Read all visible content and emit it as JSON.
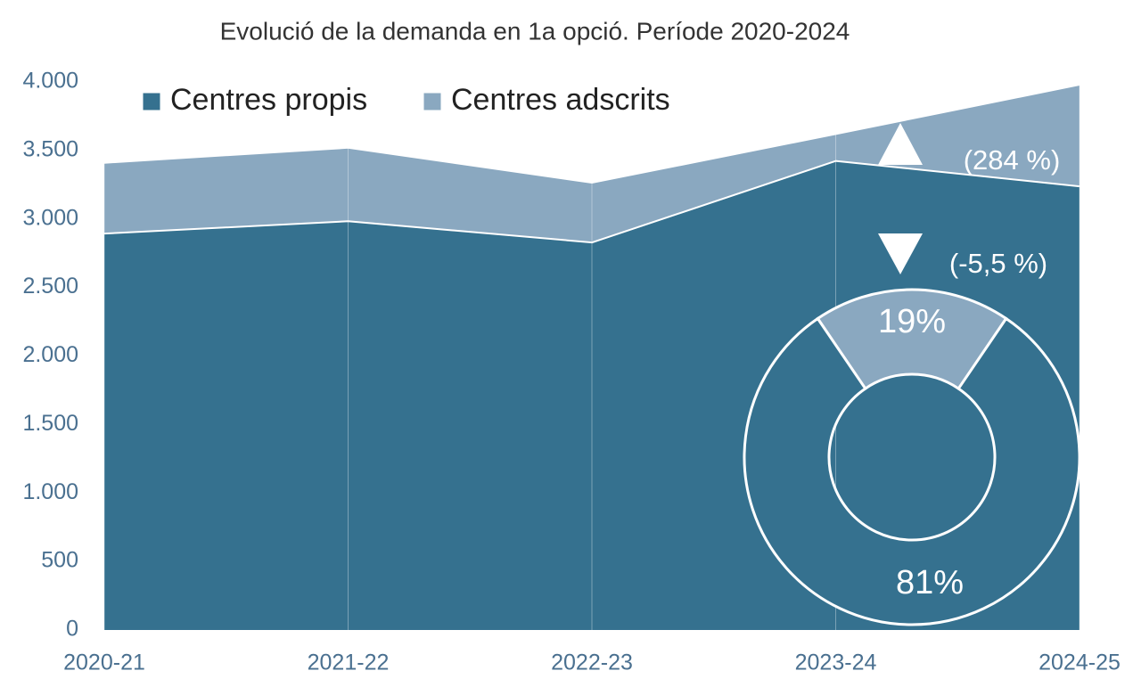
{
  "chart_data": [
    {
      "type": "area",
      "title": "Evolució de la demanda en 1a opció. Període 2020-2024",
      "categories": [
        "2020-21",
        "2021-22",
        "2022-23",
        "2023-24",
        "2024-25"
      ],
      "series": [
        {
          "name": "Centres propis",
          "color": "#35718f",
          "values": [
            2900,
            2990,
            2835,
            3430,
            3245
          ]
        },
        {
          "name": "Centres adscrits",
          "color": "#8aa8c0",
          "values": [
            510,
            530,
            430,
            190,
            735
          ]
        }
      ],
      "stacked": true,
      "ylim": [
        0,
        4000
      ],
      "yticks": [
        0,
        500,
        {
          "value": 1000,
          "label": "1.000"
        },
        {
          "value": 1500,
          "label": "1.500"
        },
        {
          "value": 2000,
          "label": "2.000"
        },
        {
          "value": 2500,
          "label": "2.500"
        },
        {
          "value": 3000,
          "label": "3.000"
        },
        {
          "value": 3500,
          "label": "3.500"
        },
        {
          "value": 4000,
          "label": "4.000"
        }
      ],
      "annotations": [
        "(284 %)",
        "(-5,5 %)"
      ],
      "grid": true
    },
    {
      "type": "pie",
      "donut": true,
      "values": [
        19,
        81
      ],
      "value_labels": [
        "19%",
        "81%"
      ],
      "colors": [
        "#8aa8c0",
        "#35718f"
      ]
    }
  ]
}
